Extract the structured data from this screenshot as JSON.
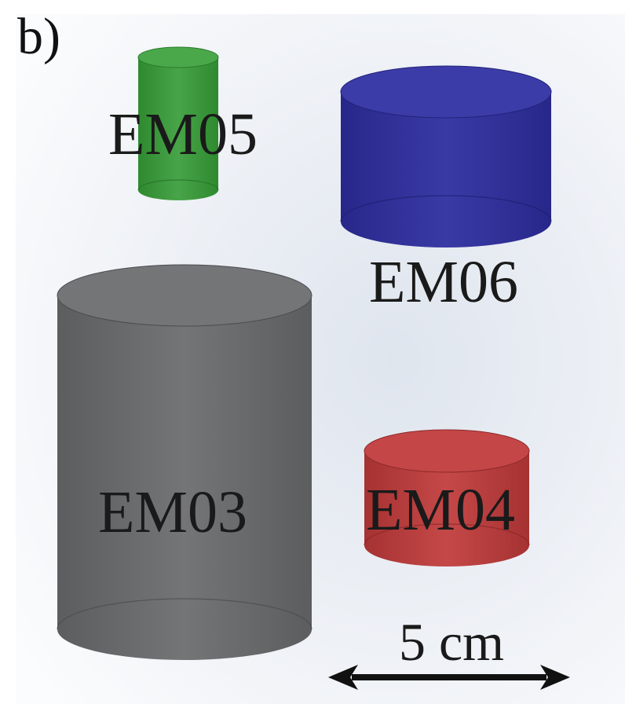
{
  "panel_label": "b)",
  "cylinders": [
    {
      "id": "em05",
      "label": "EM05",
      "color": "#3f9a3f"
    },
    {
      "id": "em06",
      "label": "EM06",
      "color": "#33339c"
    },
    {
      "id": "em03",
      "label": "EM03",
      "color": "#6c6d6f"
    },
    {
      "id": "em04",
      "label": "EM04",
      "color": "#b83d3d"
    }
  ],
  "scale_bar": {
    "label": "5 cm"
  }
}
